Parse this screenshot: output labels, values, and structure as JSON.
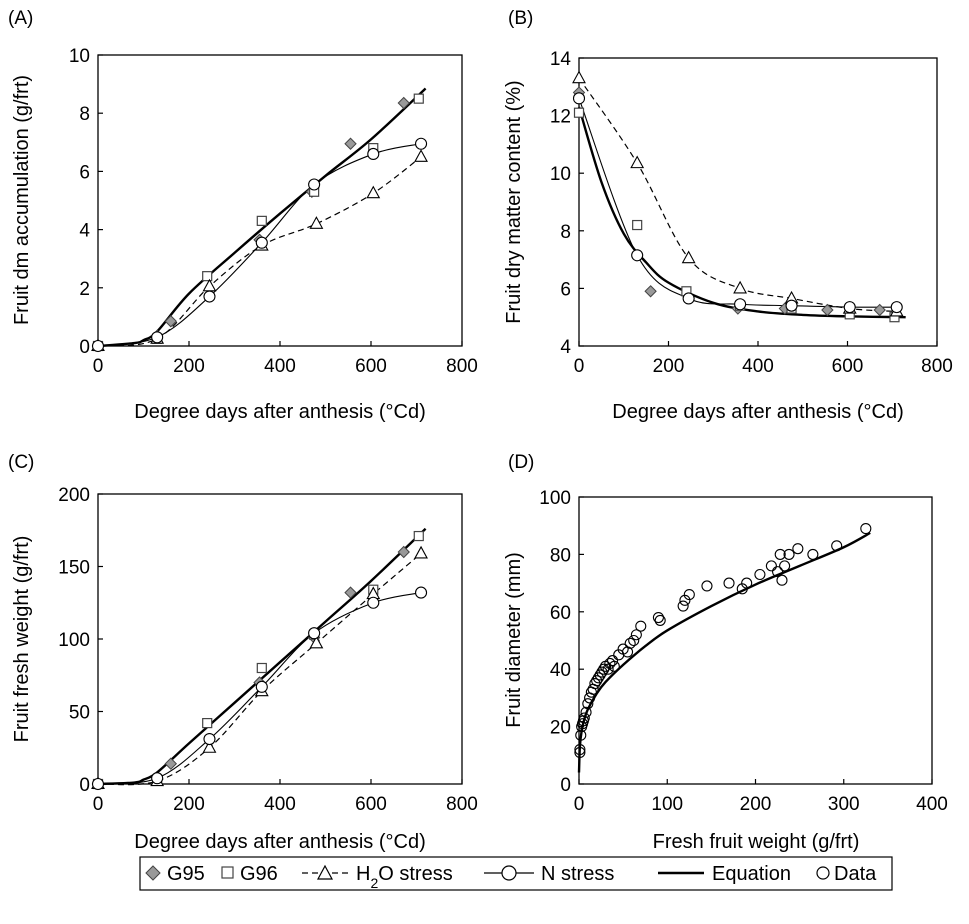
{
  "chart_data": [
    {
      "panel_label": "(A)",
      "type": "line",
      "xlabel": "Degree days after anthesis (°Cd)",
      "ylabel": "Fruit dm accumulation (g/frt)",
      "xlim": [
        0,
        800
      ],
      "ylim": [
        0,
        10
      ],
      "xticks": [
        0,
        200,
        400,
        600,
        800
      ],
      "yticks": [
        0,
        2,
        4,
        6,
        8,
        10
      ],
      "grid": false,
      "series": [
        {
          "name": "G95",
          "style": "diamond-marker",
          "x": [
            0,
            130,
            160,
            355,
            470,
            555,
            672
          ],
          "y": [
            0.0,
            0.35,
            0.85,
            3.65,
            5.3,
            6.95,
            8.35
          ]
        },
        {
          "name": "G96",
          "style": "square-marker",
          "x": [
            0,
            130,
            240,
            360,
            475,
            605,
            705
          ],
          "y": [
            0.0,
            0.25,
            2.4,
            4.3,
            5.3,
            6.8,
            8.5
          ]
        },
        {
          "name": "H2O stress",
          "style": "triangle-marker-dashed-line",
          "x": [
            0,
            130,
            245,
            360,
            480,
            605,
            710
          ],
          "y": [
            0.0,
            0.25,
            2.05,
            3.45,
            4.2,
            5.25,
            6.5
          ]
        },
        {
          "name": "N stress",
          "style": "circle-marker-thin-line",
          "x": [
            0,
            130,
            245,
            360,
            475,
            605,
            710
          ],
          "y": [
            0.0,
            0.3,
            1.7,
            3.55,
            5.55,
            6.6,
            6.95
          ]
        },
        {
          "name": "Equation",
          "style": "thick-line",
          "x": [
            0,
            80,
            100,
            130,
            200,
            300,
            400,
            500,
            600,
            720
          ],
          "y": [
            0.0,
            0.1,
            0.2,
            0.5,
            1.8,
            3.2,
            4.55,
            5.85,
            7.1,
            8.85
          ]
        }
      ]
    },
    {
      "panel_label": "(B)",
      "type": "line",
      "xlabel": "Degree days after anthesis (°Cd)",
      "ylabel": "Fruit dry matter content (%)",
      "xlim": [
        0,
        800
      ],
      "ylim": [
        4,
        14
      ],
      "xticks": [
        0,
        200,
        400,
        600,
        800
      ],
      "yticks": [
        4,
        6,
        8,
        10,
        12,
        14
      ],
      "grid": false,
      "series": [
        {
          "name": "G95",
          "style": "diamond-marker",
          "x": [
            0,
            160,
            355,
            460,
            555,
            672
          ],
          "y": [
            12.8,
            5.9,
            5.3,
            5.3,
            5.25,
            5.25
          ]
        },
        {
          "name": "G96",
          "style": "square-marker",
          "x": [
            0,
            130,
            240,
            360,
            475,
            605,
            705
          ],
          "y": [
            12.1,
            8.2,
            5.9,
            5.4,
            5.3,
            5.1,
            5.0
          ]
        },
        {
          "name": "H2O stress",
          "style": "triangle-marker-dashed-line",
          "x": [
            0,
            130,
            245,
            360,
            475,
            605,
            710
          ],
          "y": [
            13.3,
            10.35,
            7.05,
            6.0,
            5.65,
            5.3,
            5.2
          ]
        },
        {
          "name": "N stress",
          "style": "circle-marker-thin-line",
          "x": [
            0,
            130,
            245,
            360,
            475,
            605,
            710
          ],
          "y": [
            12.6,
            7.15,
            5.65,
            5.45,
            5.4,
            5.35,
            5.35
          ]
        },
        {
          "name": "Equation",
          "style": "thick-line",
          "x": [
            0,
            50,
            100,
            150,
            200,
            300,
            400,
            500,
            600,
            730
          ],
          "y": [
            12.3,
            9.7,
            7.9,
            6.9,
            6.2,
            5.5,
            5.2,
            5.08,
            5.03,
            5.0
          ]
        }
      ]
    },
    {
      "panel_label": "(C)",
      "type": "line",
      "xlabel": "Degree days after anthesis (°Cd)",
      "ylabel": "Fruit fresh weight (g/frt)",
      "xlim": [
        0,
        800
      ],
      "ylim": [
        0,
        200
      ],
      "xticks": [
        0,
        200,
        400,
        600,
        800
      ],
      "yticks": [
        0,
        50,
        100,
        150,
        200
      ],
      "grid": false,
      "series": [
        {
          "name": "G95",
          "style": "diamond-marker",
          "x": [
            0,
            160,
            355,
            475,
            555,
            672
          ],
          "y": [
            0,
            14,
            70,
            101,
            132,
            160
          ]
        },
        {
          "name": "G96",
          "style": "square-marker",
          "x": [
            0,
            130,
            240,
            360,
            475,
            605,
            705
          ],
          "y": [
            0,
            3,
            42,
            80,
            103,
            134,
            171
          ]
        },
        {
          "name": "H2O stress",
          "style": "triangle-marker-dashed-line",
          "x": [
            0,
            130,
            245,
            360,
            480,
            605,
            710
          ],
          "y": [
            0,
            2,
            25,
            64,
            97,
            131,
            159
          ]
        },
        {
          "name": "N stress",
          "style": "circle-marker-thin-line",
          "x": [
            0,
            130,
            245,
            360,
            475,
            605,
            710
          ],
          "y": [
            0,
            4,
            31,
            67,
            104,
            125,
            132
          ]
        },
        {
          "name": "Equation",
          "style": "thick-line",
          "x": [
            0,
            80,
            100,
            130,
            200,
            300,
            400,
            500,
            600,
            720
          ],
          "y": [
            0,
            1,
            3,
            8,
            28,
            56,
            84,
            112,
            140,
            176
          ]
        }
      ]
    },
    {
      "panel_label": "(D)",
      "type": "scatter",
      "xlabel": "Fresh fruit weight (g/frt)",
      "ylabel": "Fruit diameter (mm)",
      "xlim": [
        0,
        400
      ],
      "ylim": [
        0,
        100
      ],
      "xticks": [
        0,
        100,
        200,
        300,
        400
      ],
      "yticks": [
        0,
        20,
        40,
        60,
        80,
        100
      ],
      "grid": false,
      "series": [
        {
          "name": "Data",
          "style": "circle-marker",
          "x": [
            1,
            1,
            2,
            3,
            4,
            5,
            6,
            8,
            10,
            12,
            14,
            16,
            18,
            20,
            22,
            24,
            26,
            28,
            30,
            33,
            35,
            38,
            40,
            45,
            50,
            55,
            58,
            62,
            65,
            70,
            90,
            92,
            118,
            120,
            125,
            145,
            170,
            185,
            190,
            205,
            218,
            225,
            228,
            230,
            233,
            238,
            248,
            265,
            292,
            325
          ],
          "y": [
            11,
            12,
            17,
            20,
            21,
            22,
            23,
            25,
            28,
            30,
            32,
            33,
            35,
            36,
            37,
            38,
            39,
            40,
            41,
            40,
            42,
            43,
            41,
            45,
            47,
            46,
            49,
            50,
            52,
            55,
            58,
            57,
            62,
            64,
            66,
            69,
            70,
            68,
            70,
            73,
            76,
            74,
            80,
            71,
            76,
            80,
            82,
            80,
            83,
            89
          ]
        },
        {
          "name": "Equation",
          "style": "thick-line",
          "x": [
            0,
            1,
            3,
            6,
            10,
            20,
            30,
            50,
            75,
            100,
            150,
            200,
            250,
            300,
            330
          ],
          "y": [
            4,
            13,
            18.5,
            22.5,
            26,
            31.5,
            35.5,
            41.5,
            48,
            53.5,
            62,
            69.5,
            76,
            82.5,
            87.5
          ]
        }
      ]
    }
  ],
  "legend": [
    {
      "key": "g95",
      "label": "G95"
    },
    {
      "key": "g96",
      "label": "G96"
    },
    {
      "key": "h2o",
      "label_pre": "H",
      "label_sub": "2",
      "label_post": "O stress"
    },
    {
      "key": "n",
      "label": "N stress"
    },
    {
      "key": "eq",
      "label": "Equation"
    },
    {
      "key": "data",
      "label": "Data"
    }
  ]
}
